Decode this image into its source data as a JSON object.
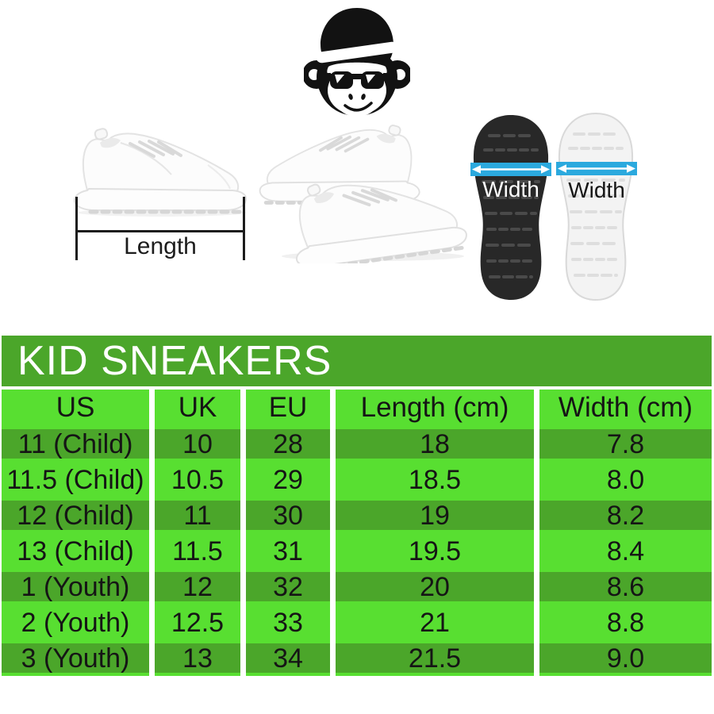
{
  "logo": {
    "icon": "monkey-face-with-bowler-hat-and-sunglasses"
  },
  "measurements": {
    "length_label": "Length",
    "width_label_left": "Width",
    "width_label_right": "Width"
  },
  "size_chart": {
    "title": "KID SNEAKERS",
    "columns": [
      "US",
      "UK",
      "EU",
      "Length (cm)",
      "Width (cm)"
    ],
    "rows": [
      [
        "11 (Child)",
        "10",
        "28",
        "18",
        "7.8"
      ],
      [
        "11.5 (Child)",
        "10.5",
        "29",
        "18.5",
        "8.0"
      ],
      [
        "12 (Child)",
        "11",
        "30",
        "19",
        "8.2"
      ],
      [
        "13 (Child)",
        "11.5",
        "31",
        "19.5",
        "8.4"
      ],
      [
        "1 (Youth)",
        "12",
        "32",
        "20",
        "8.6"
      ],
      [
        "2 (Youth)",
        "12.5",
        "33",
        "21",
        "8.8"
      ],
      [
        "3 (Youth)",
        "13",
        "34",
        "21.5",
        "9.0"
      ]
    ]
  },
  "colors": {
    "dark_green": "#4BA62A",
    "light_green": "#58DF31",
    "title_text": "#FFFFFF",
    "cell_text": "#151515",
    "cyan": "#2BA9DE",
    "measure_black": "#1C1C1C"
  }
}
